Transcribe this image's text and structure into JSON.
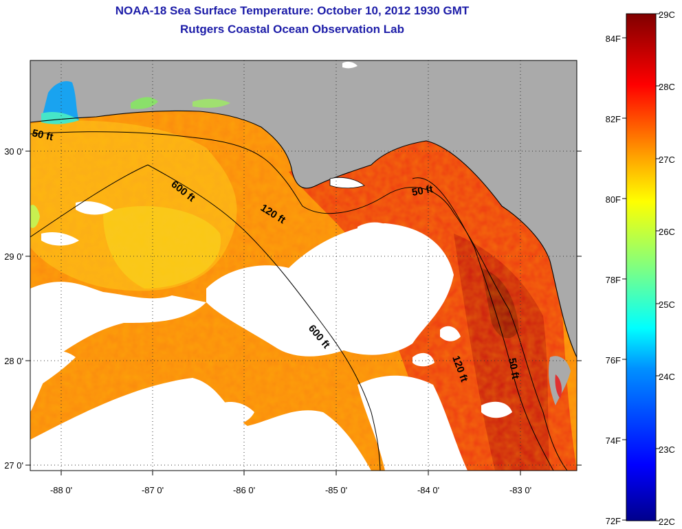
{
  "title": {
    "line1": "NOAA-18 Sea Surface Temperature:  October 10, 2012 1930 GMT",
    "line2": "Rutgers Coastal Ocean Observation Lab"
  },
  "map": {
    "lon_labels": [
      "-88 0'",
      "-87 0'",
      "-86 0'",
      "-85 0'",
      "-84 0'",
      "-83 0'"
    ],
    "lat_labels": [
      "30 0'",
      "29 0'",
      "28 0'",
      "27 0'"
    ],
    "contour_labels": [
      "50 ft",
      "600 ft",
      "120 ft",
      "50 ft",
      "600 ft",
      "120 ft",
      "50 ft"
    ],
    "land_color": "#aaaaaa",
    "cloud_color": "#ffffff"
  },
  "colorbar": {
    "celsius_labels": [
      "29C",
      "28C",
      "27C",
      "26C",
      "25C",
      "24C",
      "23C",
      "22C"
    ],
    "fahrenheit_labels": [
      "84F",
      "82F",
      "80F",
      "78F",
      "76F",
      "74F",
      "72F"
    ],
    "min_c": 22,
    "max_c": 29
  }
}
